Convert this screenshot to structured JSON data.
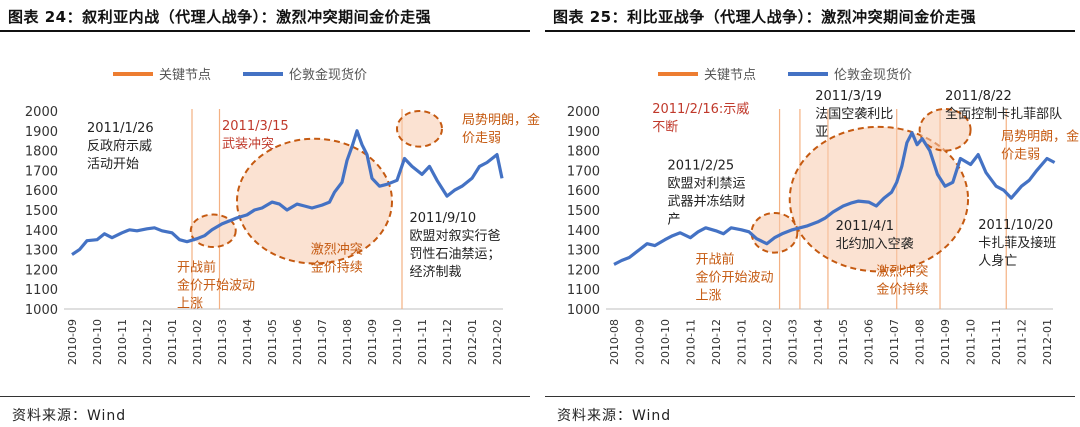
{
  "chart_data": [
    {
      "type": "line",
      "title": "图表 24：叙利亚内战（代理人战争）：激烈冲突期间金价走强",
      "source": "资料来源：Wind",
      "legend": [
        "关键节点",
        "伦敦金现货价"
      ],
      "legend_colors": [
        "#ed7d31",
        "#4472c4"
      ],
      "legend_position": "top",
      "x_ticks": [
        "2010-09",
        "2010-10",
        "2010-11",
        "2010-12",
        "2011-01",
        "2011-02",
        "2011-03",
        "2011-04",
        "2011-05",
        "2011-06",
        "2011-07",
        "2011-08",
        "2011-09",
        "2011-10",
        "2011-11",
        "2011-12",
        "2012-01",
        "2012-02"
      ],
      "yticks": [
        1000,
        1100,
        1200,
        1300,
        1400,
        1500,
        1600,
        1700,
        1800,
        1900,
        2000
      ],
      "ylim": [
        1000,
        2000
      ],
      "series": [
        {
          "name": "伦敦金现货价",
          "color": "#4472c4",
          "x": [
            0,
            0.3,
            0.6,
            1,
            1.3,
            1.6,
            2,
            2.3,
            2.6,
            3,
            3.3,
            3.6,
            4,
            4.3,
            4.6,
            5,
            5.3,
            5.6,
            6,
            6.3,
            6.6,
            7,
            7.3,
            7.6,
            8,
            8.3,
            8.6,
            9,
            9.3,
            9.6,
            10,
            10.3,
            10.5,
            10.8,
            11,
            11.2,
            11.4,
            11.6,
            11.8,
            12,
            12.3,
            12.6,
            13,
            13.3,
            13.6,
            14,
            14.3,
            14.6,
            15,
            15.3,
            15.6,
            16,
            16.3,
            16.6,
            17,
            17.2
          ],
          "values": [
            1275,
            1300,
            1345,
            1350,
            1380,
            1360,
            1385,
            1400,
            1395,
            1405,
            1410,
            1395,
            1385,
            1350,
            1340,
            1355,
            1370,
            1400,
            1430,
            1445,
            1460,
            1475,
            1500,
            1510,
            1540,
            1530,
            1500,
            1530,
            1520,
            1510,
            1525,
            1540,
            1590,
            1640,
            1750,
            1820,
            1900,
            1830,
            1780,
            1660,
            1620,
            1630,
            1650,
            1760,
            1720,
            1680,
            1720,
            1650,
            1570,
            1600,
            1620,
            1660,
            1720,
            1740,
            1780,
            1660
          ]
        }
      ],
      "key_nodes": [
        4.8,
        5.9,
        13.2
      ],
      "circles": [
        {
          "cx": 5.65,
          "cy": 1395,
          "rx": 0.9,
          "ry": 82
        },
        {
          "cx": 9.7,
          "cy": 1545,
          "rx": 3.1,
          "ry": 315
        },
        {
          "cx": 13.9,
          "cy": 1910,
          "rx": 0.9,
          "ry": 90
        }
      ],
      "annotations": [
        {
          "text": [
            "2011/1/26",
            "反政府示威",
            "活动开始"
          ],
          "color": "#222",
          "x": 0.6,
          "y": 1895
        },
        {
          "text": [
            "2011/3/15",
            "武装冲突"
          ],
          "color": "#c0392b",
          "x": 6.0,
          "y": 1905
        },
        {
          "text": [
            "局势明朗，金",
            "价走弱"
          ],
          "color": "#c55a11",
          "x": 15.6,
          "y": 1935
        },
        {
          "text": [
            "2011/9/10",
            "欧盟对叙实行爸",
            "罚性石油禁运；",
            "经济制裁"
          ],
          "color": "#222",
          "x": 13.5,
          "y": 1440
        },
        {
          "text": [
            "激烈冲突",
            "金价持续"
          ],
          "color": "#c55a11",
          "x": 9.55,
          "y": 1280
        },
        {
          "text": [
            "开战前",
            "金价开始波动",
            "上涨"
          ],
          "color": "#c55a11",
          "x": 4.2,
          "y": 1190
        }
      ]
    },
    {
      "type": "line",
      "title": "图表 25：利比亚战争（代理人战争）：激烈冲突期间金价走强",
      "source": "资料来源：Wind",
      "legend": [
        "关键节点",
        "伦敦金现货价"
      ],
      "legend_colors": [
        "#ed7d31",
        "#4472c4"
      ],
      "legend_position": "top",
      "x_ticks": [
        "2010-08",
        "2010-09",
        "2010-10",
        "2010-11",
        "2010-12",
        "2011-01",
        "2011-02",
        "2011-03",
        "2011-04",
        "2011-05",
        "2011-06",
        "2011-07",
        "2011-08",
        "2011-09",
        "2011-10",
        "2011-11",
        "2011-12",
        "2012-01"
      ],
      "yticks": [
        1000,
        1100,
        1200,
        1300,
        1400,
        1500,
        1600,
        1700,
        1800,
        1900,
        2000
      ],
      "ylim": [
        1000,
        2000
      ],
      "series": [
        {
          "name": "伦敦金现货价",
          "color": "#4472c4",
          "x": [
            0,
            0.3,
            0.6,
            1,
            1.3,
            1.6,
            2,
            2.3,
            2.6,
            3,
            3.3,
            3.6,
            4,
            4.3,
            4.6,
            5,
            5.3,
            5.6,
            6,
            6.3,
            6.6,
            7,
            7.3,
            7.6,
            8,
            8.3,
            8.6,
            9,
            9.3,
            9.6,
            10,
            10.3,
            10.6,
            10.9,
            11.1,
            11.3,
            11.5,
            11.7,
            11.9,
            12.1,
            12.4,
            12.7,
            13,
            13.3,
            13.6,
            14,
            14.3,
            14.6,
            15,
            15.3,
            15.6,
            16,
            16.3,
            16.6,
            17,
            17.3
          ],
          "values": [
            1225,
            1245,
            1260,
            1300,
            1330,
            1320,
            1350,
            1370,
            1385,
            1360,
            1390,
            1410,
            1395,
            1380,
            1410,
            1400,
            1390,
            1355,
            1330,
            1360,
            1380,
            1400,
            1410,
            1420,
            1440,
            1460,
            1490,
            1520,
            1535,
            1545,
            1540,
            1520,
            1560,
            1590,
            1640,
            1720,
            1840,
            1890,
            1830,
            1860,
            1800,
            1680,
            1620,
            1640,
            1760,
            1730,
            1780,
            1690,
            1620,
            1600,
            1560,
            1620,
            1650,
            1700,
            1760,
            1740
          ]
        }
      ],
      "key_nodes": [
        6.5,
        7.3,
        8.4,
        11.1,
        12.8,
        15.4
      ],
      "circles": [
        {
          "cx": 6.3,
          "cy": 1385,
          "rx": 0.9,
          "ry": 100
        },
        {
          "cx": 10.4,
          "cy": 1555,
          "rx": 3.5,
          "ry": 365
        },
        {
          "cx": 13.0,
          "cy": 1905,
          "rx": 1.0,
          "ry": 105
        }
      ],
      "annotations": [
        {
          "text": [
            "2011/2/16:示威",
            "不断"
          ],
          "color": "#c0392b",
          "x": 1.5,
          "y": 1990
        },
        {
          "text": [
            "2011/3/19",
            "法国空袭利比",
            "亚"
          ],
          "color": "#222",
          "x": 7.9,
          "y": 2055
        },
        {
          "text": [
            "2011/8/22",
            "全面控制卡扎菲部队"
          ],
          "color": "#222",
          "x": 13.0,
          "y": 2055
        },
        {
          "text": [
            "局势明朗，金",
            "价走弱"
          ],
          "color": "#c55a11",
          "x": 15.2,
          "y": 1850
        },
        {
          "text": [
            "2011/2/25",
            "欧盟对利禁运",
            "武器并冻结财",
            "产"
          ],
          "color": "#222",
          "x": 2.1,
          "y": 1705
        },
        {
          "text": [
            "2011/4/1",
            "北约加入空袭"
          ],
          "color": "#222",
          "x": 8.7,
          "y": 1400
        },
        {
          "text": [
            "2011/10/20",
            "卡扎菲及接班",
            "人身亡"
          ],
          "color": "#222",
          "x": 14.3,
          "y": 1405
        },
        {
          "text": [
            "开战前",
            "金价开始波动",
            "上涨"
          ],
          "color": "#c55a11",
          "x": 3.2,
          "y": 1230
        },
        {
          "text": [
            "激烈冲突",
            "金价持续"
          ],
          "color": "#c55a11",
          "x": 10.3,
          "y": 1170
        }
      ]
    }
  ]
}
